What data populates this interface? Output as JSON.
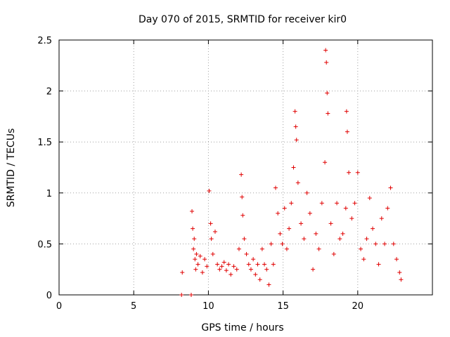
{
  "chart_data": {
    "type": "scatter",
    "title": "Day 070 of 2015, SRMTID for receiver kir0",
    "xlabel": "GPS time / hours",
    "ylabel": "SRMTID / TECUs",
    "xlim": [
      0,
      25
    ],
    "ylim": [
      0,
      2.5
    ],
    "xticks": [
      0,
      5,
      10,
      15,
      20
    ],
    "yticks": [
      0,
      0.5,
      1,
      1.5,
      2,
      2.5
    ],
    "xtick_labels": [
      "0",
      "5",
      "10",
      "15",
      "20"
    ],
    "ytick_labels": [
      "0",
      "0.5",
      "1",
      "1.5",
      "2",
      "2.5"
    ],
    "grid": true,
    "marker": "plus",
    "color": "#e00000",
    "series": [
      {
        "name": "kir0",
        "x": [
          8.2,
          8.25,
          8.85,
          8.9,
          8.95,
          9.0,
          9.05,
          9.1,
          9.15,
          9.2,
          9.3,
          9.45,
          9.6,
          9.75,
          9.9,
          10.05,
          10.15,
          10.2,
          10.3,
          10.45,
          10.6,
          10.75,
          10.9,
          11.05,
          11.2,
          11.35,
          11.5,
          11.7,
          11.9,
          12.05,
          12.2,
          12.25,
          12.3,
          12.4,
          12.55,
          12.7,
          12.85,
          13.0,
          13.15,
          13.3,
          13.45,
          13.6,
          13.75,
          13.9,
          14.05,
          14.2,
          14.35,
          14.5,
          14.65,
          14.8,
          14.95,
          15.1,
          15.25,
          15.4,
          15.55,
          15.7,
          15.8,
          15.85,
          15.9,
          16.0,
          16.2,
          16.4,
          16.6,
          16.8,
          17.0,
          17.2,
          17.4,
          17.6,
          17.8,
          17.85,
          17.9,
          17.95,
          18.0,
          18.2,
          18.4,
          18.6,
          18.8,
          19.0,
          19.2,
          19.25,
          19.3,
          19.4,
          19.6,
          19.8,
          20.0,
          20.2,
          20.4,
          20.6,
          20.8,
          21.0,
          21.2,
          21.4,
          21.6,
          21.8,
          22.0,
          22.2,
          22.4,
          22.6,
          22.8,
          22.9
        ],
        "y": [
          0.0,
          0.22,
          0.0,
          0.82,
          0.65,
          0.45,
          0.55,
          0.35,
          0.25,
          0.4,
          0.3,
          0.38,
          0.22,
          0.35,
          0.28,
          1.02,
          0.7,
          0.55,
          0.4,
          0.62,
          0.3,
          0.25,
          0.28,
          0.32,
          0.24,
          0.3,
          0.2,
          0.28,
          0.25,
          0.45,
          1.18,
          0.96,
          0.78,
          0.55,
          0.4,
          0.3,
          0.25,
          0.35,
          0.2,
          0.3,
          0.15,
          0.45,
          0.3,
          0.25,
          0.1,
          0.5,
          0.3,
          1.05,
          0.8,
          0.6,
          0.5,
          0.85,
          0.45,
          0.65,
          0.9,
          1.25,
          1.8,
          1.65,
          1.52,
          1.1,
          0.7,
          0.55,
          1.0,
          0.8,
          0.25,
          0.6,
          0.45,
          0.9,
          1.3,
          2.4,
          2.28,
          1.98,
          1.78,
          0.7,
          0.4,
          0.9,
          0.55,
          0.6,
          0.85,
          1.8,
          1.6,
          1.2,
          0.75,
          0.9,
          1.2,
          0.45,
          0.35,
          0.55,
          0.95,
          0.65,
          0.5,
          0.3,
          0.75,
          0.5,
          0.85,
          1.05,
          0.5,
          0.35,
          0.22,
          0.15
        ]
      }
    ]
  }
}
